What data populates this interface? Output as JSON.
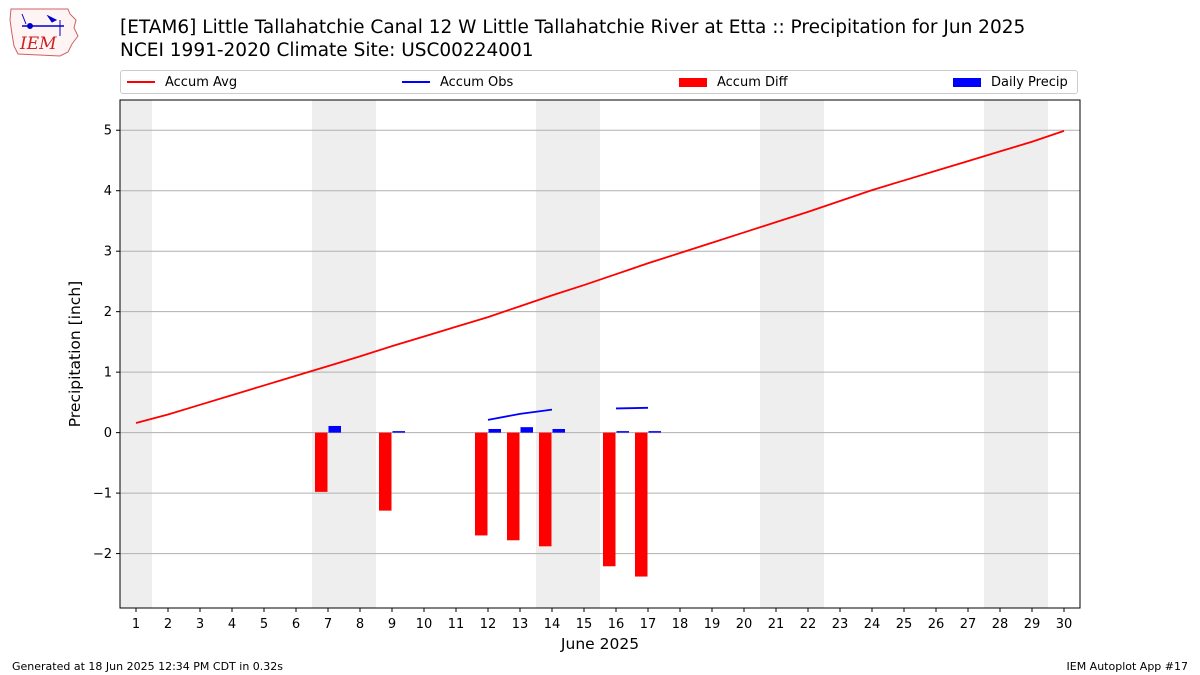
{
  "header": {
    "title_line1": "[ETAM6] Little Tallahatchie Canal 12 W Little Tallahatchie River at Etta :: Precipitation for Jun 2025",
    "title_line2": "NCEI 1991-2020 Climate Site: USC00224001",
    "logo_text": "IEM"
  },
  "legend": {
    "items": [
      {
        "label": "Accum Avg",
        "kind": "line",
        "color": "#ff0000"
      },
      {
        "label": "Accum Obs",
        "kind": "line",
        "color": "#0000ff"
      },
      {
        "label": "Accum Diff",
        "kind": "patch",
        "color": "#ff0000"
      },
      {
        "label": "Daily Precip",
        "kind": "patch",
        "color": "#0000ff"
      }
    ]
  },
  "footer": {
    "generated": "Generated at 18 Jun 2025 12:34 PM CDT in 0.32s",
    "app": "IEM Autoplot App #17"
  },
  "chart_data": {
    "type": "bar",
    "xlabel": "June 2025",
    "ylabel": "Precipitation [inch]",
    "xlim": [
      0.5,
      30.5
    ],
    "ylim": [
      -2.9,
      5.5
    ],
    "yticks": [
      -2,
      -1,
      0,
      1,
      2,
      3,
      4,
      5
    ],
    "ytick_labels": [
      "−2",
      "−1",
      "0",
      "1",
      "2",
      "3",
      "4",
      "5"
    ],
    "x": [
      1,
      2,
      3,
      4,
      5,
      6,
      7,
      8,
      9,
      10,
      11,
      12,
      13,
      14,
      15,
      16,
      17,
      18,
      19,
      20,
      21,
      22,
      23,
      24,
      25,
      26,
      27,
      28,
      29,
      30
    ],
    "grid": "horizontal",
    "weekend_shading": [
      [
        0.5,
        1.5
      ],
      [
        6.5,
        8.5
      ],
      [
        13.5,
        15.5
      ],
      [
        20.5,
        22.5
      ],
      [
        27.5,
        29.5
      ]
    ],
    "series": [
      {
        "name": "Accum Avg",
        "kind": "line",
        "color": "#ff0000",
        "x": [
          1,
          2,
          3,
          4,
          5,
          6,
          7,
          8,
          9,
          10,
          11,
          12,
          13,
          14,
          15,
          16,
          17,
          18,
          19,
          20,
          21,
          22,
          23,
          24,
          25,
          26,
          27,
          28,
          29,
          30
        ],
        "values": [
          0.16,
          0.3,
          0.46,
          0.62,
          0.78,
          0.94,
          1.1,
          1.26,
          1.43,
          1.59,
          1.75,
          1.91,
          2.09,
          2.27,
          2.44,
          2.62,
          2.8,
          2.97,
          3.14,
          3.31,
          3.48,
          3.65,
          3.83,
          4.01,
          4.17,
          4.33,
          4.49,
          4.65,
          4.81,
          4.99
        ]
      },
      {
        "name": "Accum Obs",
        "kind": "line",
        "color": "#0000ff",
        "segments": [
          {
            "x": [
              12,
              13,
              14
            ],
            "values": [
              0.21,
              0.31,
              0.38
            ]
          },
          {
            "x": [
              16,
              17
            ],
            "values": [
              0.4,
              0.41
            ]
          }
        ]
      },
      {
        "name": "Accum Diff",
        "kind": "bar",
        "color": "#ff0000",
        "x": [
          7,
          9,
          12,
          13,
          14,
          16,
          17
        ],
        "values": [
          -0.98,
          -1.29,
          -1.7,
          -1.78,
          -1.88,
          -2.21,
          -2.38
        ]
      },
      {
        "name": "Daily Precip",
        "kind": "bar",
        "color": "#0000ff",
        "x": [
          7,
          9,
          12,
          13,
          14,
          16,
          17
        ],
        "values": [
          0.11,
          0.01,
          0.06,
          0.09,
          0.06,
          0.01,
          0.01
        ]
      }
    ]
  }
}
